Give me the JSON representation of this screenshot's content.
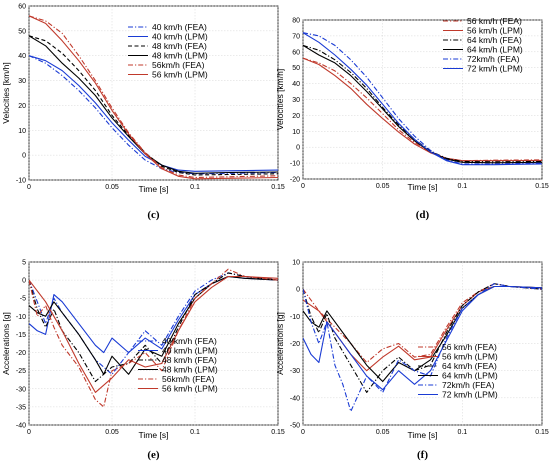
{
  "chart_data": [
    {
      "id": "c",
      "type": "line",
      "caption": "(c)",
      "xlabel": "Time [s]",
      "ylabel": "Velocities [km/h]",
      "xlim": [
        0,
        0.15
      ],
      "ylim": [
        -10,
        60
      ],
      "xticks": [
        "0",
        "0.05",
        "0.1",
        "0.15"
      ],
      "yticks": [
        "-10",
        "0",
        "10",
        "20",
        "30",
        "40",
        "50",
        "60"
      ],
      "grid": true,
      "legend_position": "top-right",
      "series": [
        {
          "name": "40 km/h (FEA)",
          "color": "#1a3bd4",
          "dash": "dashdot",
          "x": [
            0,
            0.01,
            0.02,
            0.03,
            0.04,
            0.05,
            0.06,
            0.07,
            0.08,
            0.09,
            0.1,
            0.12,
            0.15
          ],
          "y": [
            40,
            37,
            32,
            26,
            19,
            11,
            4,
            -2,
            -5.5,
            -7,
            -7.5,
            -7.3,
            -7
          ]
        },
        {
          "name": "40 km/h (LPM)",
          "color": "#1a3bd4",
          "dash": "solid",
          "x": [
            0,
            0.01,
            0.02,
            0.03,
            0.04,
            0.05,
            0.06,
            0.07,
            0.08,
            0.09,
            0.1,
            0.12,
            0.15
          ],
          "y": [
            40,
            38,
            34,
            28,
            21,
            13,
            6,
            -0.5,
            -4,
            -6,
            -6.5,
            -6.3,
            -6
          ]
        },
        {
          "name": "48 km/h (FEA)",
          "color": "#000000",
          "dash": "dashed",
          "x": [
            0,
            0.01,
            0.02,
            0.03,
            0.04,
            0.05,
            0.06,
            0.07,
            0.08,
            0.09,
            0.1,
            0.12,
            0.15
          ],
          "y": [
            48,
            46,
            41,
            34,
            26,
            16,
            8,
            1,
            -4.5,
            -7,
            -8,
            -7.8,
            -7.5
          ]
        },
        {
          "name": "48 km/h (LPM)",
          "color": "#000000",
          "dash": "solid",
          "x": [
            0,
            0.01,
            0.02,
            0.03,
            0.04,
            0.05,
            0.06,
            0.07,
            0.08,
            0.09,
            0.1,
            0.12,
            0.15
          ],
          "y": [
            48,
            44,
            37,
            31,
            24,
            15,
            7.5,
            0.5,
            -4,
            -6.5,
            -7.3,
            -7,
            -6.8
          ]
        },
        {
          "name": "56km/h (FEA)",
          "color": "#c0392b",
          "dash": "dashdot",
          "x": [
            0,
            0.01,
            0.02,
            0.03,
            0.04,
            0.05,
            0.06,
            0.07,
            0.08,
            0.09,
            0.1,
            0.12,
            0.15
          ],
          "y": [
            56,
            54,
            49,
            40,
            30,
            19,
            9,
            1,
            -5,
            -8,
            -9,
            -8.7,
            -8.3
          ]
        },
        {
          "name": "56 km/h (LPM)",
          "color": "#c0392b",
          "dash": "solid",
          "x": [
            0,
            0.01,
            0.02,
            0.03,
            0.04,
            0.05,
            0.06,
            0.07,
            0.08,
            0.09,
            0.1,
            0.12,
            0.15
          ],
          "y": [
            56,
            53,
            46,
            38,
            29,
            18,
            8.5,
            0.5,
            -5.5,
            -8.5,
            -9.5,
            -9.3,
            -9
          ]
        }
      ]
    },
    {
      "id": "d",
      "type": "line",
      "caption": "(d)",
      "xlabel": "Time [s]",
      "ylabel": "Velocities [km/h]",
      "xlim": [
        0,
        0.15
      ],
      "ylim": [
        -20,
        80
      ],
      "xticks": [
        "0",
        "0.05",
        "0.1",
        "0.15"
      ],
      "yticks": [
        "-20",
        "-10",
        "0",
        "10",
        "20",
        "30",
        "40",
        "50",
        "60",
        "70",
        "80"
      ],
      "grid": true,
      "legend_position": "top-right",
      "series": [
        {
          "name": "56 km/h (FEA)",
          "color": "#c0392b",
          "dash": "dashdot",
          "x": [
            0,
            0.01,
            0.02,
            0.03,
            0.04,
            0.05,
            0.06,
            0.07,
            0.08,
            0.09,
            0.1,
            0.12,
            0.15
          ],
          "y": [
            56,
            53,
            48,
            40,
            31,
            21,
            11,
            3,
            -3,
            -7,
            -8.5,
            -8.2,
            -8
          ]
        },
        {
          "name": "56 km/h (LPM)",
          "color": "#c0392b",
          "dash": "solid",
          "x": [
            0,
            0.01,
            0.02,
            0.03,
            0.04,
            0.05,
            0.06,
            0.07,
            0.08,
            0.09,
            0.1,
            0.12,
            0.15
          ],
          "y": [
            56,
            52,
            45,
            37,
            27,
            18,
            9.5,
            2,
            -3.5,
            -7,
            -8.5,
            -8.5,
            -8.3
          ]
        },
        {
          "name": "64 km/h (FEA)",
          "color": "#000000",
          "dash": "dashdot",
          "x": [
            0,
            0.01,
            0.02,
            0.03,
            0.04,
            0.05,
            0.06,
            0.07,
            0.08,
            0.09,
            0.1,
            0.12,
            0.15
          ],
          "y": [
            64,
            61,
            55,
            47,
            37,
            25,
            14,
            5,
            -2.5,
            -7,
            -9,
            -9.2,
            -9
          ]
        },
        {
          "name": "64 km/h (LPM)",
          "color": "#000000",
          "dash": "solid",
          "x": [
            0,
            0.01,
            0.02,
            0.03,
            0.04,
            0.05,
            0.06,
            0.07,
            0.08,
            0.09,
            0.1,
            0.12,
            0.15
          ],
          "y": [
            64,
            58,
            53,
            45,
            35,
            24,
            13,
            4,
            -3,
            -7.5,
            -9.5,
            -9.8,
            -9.5
          ]
        },
        {
          "name": "72km/h (FEA)",
          "color": "#1a3bd4",
          "dash": "dashdot",
          "x": [
            0,
            0.01,
            0.02,
            0.03,
            0.04,
            0.05,
            0.06,
            0.07,
            0.08,
            0.09,
            0.1,
            0.12,
            0.15
          ],
          "y": [
            72,
            70,
            64,
            55,
            44,
            31,
            18,
            7,
            -2,
            -8,
            -10.5,
            -10.5,
            -10
          ]
        },
        {
          "name": "72 km/h (LPM)",
          "color": "#1a3bd4",
          "dash": "solid",
          "x": [
            0,
            0.01,
            0.02,
            0.03,
            0.04,
            0.05,
            0.06,
            0.07,
            0.08,
            0.09,
            0.1,
            0.12,
            0.15
          ],
          "y": [
            72,
            66,
            58,
            49,
            39,
            27,
            15,
            5,
            -3,
            -8.5,
            -11,
            -11,
            -10.5
          ]
        }
      ]
    },
    {
      "id": "e",
      "type": "line",
      "caption": "(e)",
      "xlabel": "Time [s]",
      "ylabel": "Accelerations [g]",
      "xlim": [
        0,
        0.15
      ],
      "ylim": [
        -40,
        5
      ],
      "xticks": [
        "0",
        "0.05",
        "0.1",
        "0.15"
      ],
      "yticks": [
        "-40",
        "-35",
        "-30",
        "-25",
        "-20",
        "-15",
        "-10",
        "-5",
        "0",
        "5"
      ],
      "grid": true,
      "legend_position": "bottom-right",
      "series": [
        {
          "name": "40 km/h (FEA)",
          "color": "#1a3bd4",
          "dash": "dashdot",
          "x": [
            0,
            0.005,
            0.01,
            0.015,
            0.02,
            0.03,
            0.04,
            0.05,
            0.06,
            0.07,
            0.08,
            0.09,
            0.1,
            0.11,
            0.12,
            0.13,
            0.15
          ],
          "y": [
            0,
            -6,
            -12,
            -5,
            -9,
            -15,
            -22,
            -26,
            -20,
            -14,
            -18,
            -10,
            -3,
            0,
            2,
            1,
            0
          ]
        },
        {
          "name": "40 km/h (LPM)",
          "color": "#1a3bd4",
          "dash": "solid",
          "x": [
            0,
            0.005,
            0.01,
            0.015,
            0.02,
            0.03,
            0.04,
            0.045,
            0.05,
            0.06,
            0.07,
            0.08,
            0.09,
            0.1,
            0.11,
            0.12,
            0.13,
            0.15
          ],
          "y": [
            -12,
            -14,
            -15,
            -4,
            -6,
            -12,
            -18,
            -20,
            -16,
            -20,
            -16,
            -19,
            -11,
            -4,
            -1,
            1,
            0.5,
            0
          ]
        },
        {
          "name": "48 km/h (FEA)",
          "color": "#000000",
          "dash": "dashdot",
          "x": [
            0,
            0.005,
            0.01,
            0.015,
            0.02,
            0.03,
            0.04,
            0.05,
            0.06,
            0.07,
            0.08,
            0.09,
            0.1,
            0.11,
            0.12,
            0.13,
            0.15
          ],
          "y": [
            0,
            -8,
            -13,
            -8,
            -14,
            -20,
            -28,
            -24,
            -23,
            -18,
            -23,
            -13,
            -4,
            -1,
            2,
            1,
            0
          ]
        },
        {
          "name": "48 km/h (LPM)",
          "color": "#000000",
          "dash": "solid",
          "x": [
            0,
            0.005,
            0.01,
            0.015,
            0.02,
            0.03,
            0.04,
            0.045,
            0.05,
            0.06,
            0.07,
            0.08,
            0.09,
            0.1,
            0.11,
            0.12,
            0.13,
            0.15
          ],
          "y": [
            -7,
            -9,
            -10,
            -6,
            -9,
            -15,
            -22,
            -26,
            -21,
            -26,
            -19,
            -21,
            -12,
            -5,
            -1,
            1,
            0.5,
            0
          ]
        },
        {
          "name": "56km/h (FEA)",
          "color": "#c0392b",
          "dash": "dashdot",
          "x": [
            0,
            0.005,
            0.01,
            0.015,
            0.02,
            0.03,
            0.04,
            0.045,
            0.05,
            0.06,
            0.07,
            0.08,
            0.09,
            0.1,
            0.11,
            0.12,
            0.13,
            0.15
          ],
          "y": [
            0,
            -10,
            -7,
            -13,
            -18,
            -24,
            -33,
            -35,
            -25,
            -23,
            -20,
            -25,
            -14,
            -5,
            -1,
            3,
            1,
            0
          ]
        },
        {
          "name": "56 km/h (LPM)",
          "color": "#c0392b",
          "dash": "solid",
          "x": [
            0,
            0.01,
            0.02,
            0.03,
            0.04,
            0.05,
            0.06,
            0.07,
            0.08,
            0.09,
            0.1,
            0.11,
            0.12,
            0.13,
            0.15
          ],
          "y": [
            0,
            -6,
            -14,
            -23,
            -31,
            -27,
            -22,
            -24,
            -23,
            -14,
            -6,
            -2,
            1,
            1,
            0.5
          ]
        }
      ]
    },
    {
      "id": "f",
      "type": "line",
      "caption": "(f)",
      "xlabel": "Time [s]",
      "ylabel": "Accelerations [g]",
      "xlim": [
        0,
        0.15
      ],
      "ylim": [
        -50,
        10
      ],
      "xticks": [
        "0",
        "0.05",
        "0.1",
        "0.15"
      ],
      "yticks": [
        "-50",
        "-40",
        "-30",
        "-20",
        "-10",
        "0",
        "10"
      ],
      "grid": true,
      "legend_position": "bottom-right",
      "series": [
        {
          "name": "56 km/h (FEA)",
          "color": "#c0392b",
          "dash": "dashdot",
          "x": [
            0,
            0.01,
            0.02,
            0.03,
            0.04,
            0.05,
            0.06,
            0.07,
            0.08,
            0.09,
            0.1,
            0.11,
            0.12,
            0.13,
            0.15
          ],
          "y": [
            0,
            -8,
            -14,
            -20,
            -27,
            -22,
            -20,
            -25,
            -24,
            -14,
            -5,
            -1,
            2,
            1,
            0
          ]
        },
        {
          "name": "56 km/h (LPM)",
          "color": "#c0392b",
          "dash": "solid",
          "x": [
            0,
            0.01,
            0.02,
            0.03,
            0.04,
            0.05,
            0.06,
            0.07,
            0.08,
            0.09,
            0.1,
            0.11,
            0.12,
            0.13,
            0.15
          ],
          "y": [
            -4,
            -8,
            -16,
            -24,
            -30,
            -25,
            -21,
            -26,
            -25,
            -15,
            -6,
            -1,
            1,
            1,
            0.5
          ]
        },
        {
          "name": "64 km/h (FEA)",
          "color": "#000000",
          "dash": "dashdot",
          "x": [
            0,
            0.005,
            0.01,
            0.015,
            0.02,
            0.03,
            0.04,
            0.05,
            0.06,
            0.07,
            0.08,
            0.09,
            0.1,
            0.11,
            0.12,
            0.13,
            0.15
          ],
          "y": [
            0,
            -10,
            -16,
            -9,
            -18,
            -28,
            -38,
            -30,
            -25,
            -30,
            -28,
            -16,
            -6,
            -1,
            2,
            1,
            0
          ]
        },
        {
          "name": "64 km/h (LPM)",
          "color": "#000000",
          "dash": "solid",
          "x": [
            0,
            0.005,
            0.01,
            0.015,
            0.02,
            0.03,
            0.04,
            0.05,
            0.06,
            0.07,
            0.08,
            0.09,
            0.1,
            0.11,
            0.12,
            0.13,
            0.15
          ],
          "y": [
            -8,
            -12,
            -14,
            -8,
            -12,
            -20,
            -28,
            -34,
            -27,
            -30,
            -26,
            -17,
            -7,
            -2,
            1,
            1,
            0.5
          ]
        },
        {
          "name": "72km/h (FEA)",
          "color": "#1a3bd4",
          "dash": "dashdot",
          "x": [
            0,
            0.005,
            0.01,
            0.015,
            0.02,
            0.025,
            0.03,
            0.04,
            0.05,
            0.06,
            0.07,
            0.08,
            0.09,
            0.1,
            0.11,
            0.12,
            0.13,
            0.15
          ],
          "y": [
            0,
            -12,
            -20,
            -12,
            -28,
            -35,
            -45,
            -32,
            -38,
            -26,
            -30,
            -32,
            -18,
            -7,
            -2,
            2,
            1,
            0
          ]
        },
        {
          "name": "72 km/h (LPM)",
          "color": "#1a3bd4",
          "dash": "solid",
          "x": [
            0,
            0.005,
            0.01,
            0.015,
            0.02,
            0.03,
            0.04,
            0.05,
            0.06,
            0.07,
            0.08,
            0.09,
            0.1,
            0.11,
            0.12,
            0.13,
            0.15
          ],
          "y": [
            -18,
            -24,
            -27,
            -12,
            -16,
            -24,
            -32,
            -37,
            -30,
            -35,
            -30,
            -19,
            -8,
            -2,
            1,
            1,
            0.5
          ]
        }
      ]
    }
  ]
}
